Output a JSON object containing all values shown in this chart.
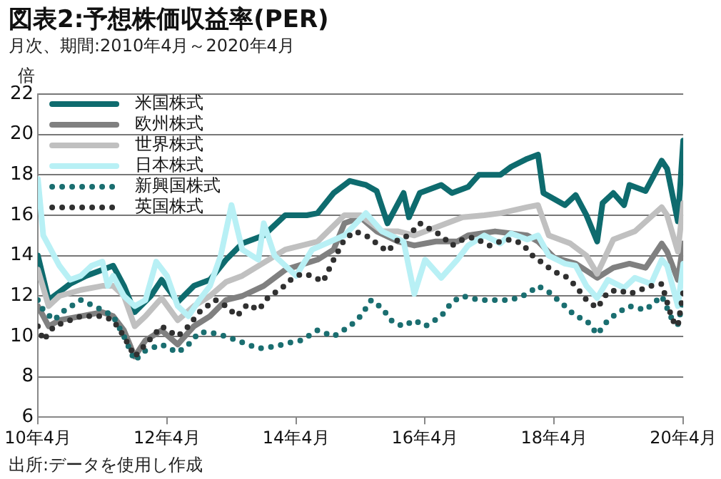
{
  "chart_data": {
    "type": "line",
    "title": "図表2:予想株価収益率(PER)",
    "subtitle": "月次、期間:2010年4月～2020年4月",
    "ylabel": "倍",
    "xlim": [
      "2010-04",
      "2020-04"
    ],
    "xticks": [
      {
        "value": "2010-04",
        "label": "10年4月"
      },
      {
        "value": "2012-04",
        "label": "12年4月"
      },
      {
        "value": "2014-04",
        "label": "14年4月"
      },
      {
        "value": "2016-04",
        "label": "16年4月"
      },
      {
        "value": "2018-04",
        "label": "18年4月"
      },
      {
        "value": "2020-04",
        "label": "20年4月"
      }
    ],
    "ylim": [
      6,
      22
    ],
    "yticks": [
      6,
      8,
      10,
      12,
      14,
      16,
      18,
      20,
      22
    ],
    "grid": "y",
    "legend": "top left",
    "annotations": [
      "出所:データを使用し作成"
    ],
    "series": [
      {
        "name": "米国株式",
        "color": "#0e6b6e",
        "line_style": "solid",
        "x": [
          "2010-04",
          "2010-06",
          "2010-08",
          "2010-10",
          "2011-01",
          "2011-04",
          "2011-06",
          "2011-08",
          "2011-10",
          "2012-01",
          "2012-03",
          "2012-06",
          "2012-09",
          "2012-12",
          "2013-03",
          "2013-06",
          "2013-10",
          "2014-02",
          "2014-06",
          "2014-08",
          "2014-11",
          "2015-02",
          "2015-05",
          "2015-07",
          "2015-09",
          "2015-12",
          "2016-01",
          "2016-03",
          "2016-07",
          "2016-09",
          "2016-12",
          "2017-02",
          "2017-06",
          "2017-08",
          "2017-11",
          "2018-01",
          "2018-02",
          "2018-06",
          "2018-08",
          "2018-10",
          "2018-12",
          "2019-01",
          "2019-03",
          "2019-05",
          "2019-06",
          "2019-09",
          "2019-12",
          "2020-01",
          "2020-03",
          "2020-04"
        ],
        "values": [
          14.0,
          11.8,
          12.2,
          12.6,
          13.0,
          13.3,
          13.5,
          12.5,
          11.2,
          12.0,
          12.8,
          11.7,
          12.5,
          12.8,
          13.8,
          14.6,
          15.0,
          16.0,
          16.0,
          16.1,
          17.1,
          17.7,
          17.5,
          17.2,
          15.6,
          17.1,
          15.9,
          17.1,
          17.5,
          17.1,
          17.4,
          18.0,
          18.0,
          18.4,
          18.8,
          19.0,
          17.1,
          16.5,
          17.0,
          16.0,
          14.7,
          16.6,
          17.1,
          16.5,
          17.5,
          17.2,
          18.7,
          18.3,
          15.7,
          19.7
        ]
      },
      {
        "name": "欧州株式",
        "color": "#808080",
        "line_style": "solid",
        "x": [
          "2010-04",
          "2010-06",
          "2010-08",
          "2010-12",
          "2011-04",
          "2011-06",
          "2011-08",
          "2011-10",
          "2011-12",
          "2012-03",
          "2012-06",
          "2012-09",
          "2012-12",
          "2013-03",
          "2013-06",
          "2013-10",
          "2014-02",
          "2014-08",
          "2014-11",
          "2015-01",
          "2015-04",
          "2015-07",
          "2015-11",
          "2016-02",
          "2016-06",
          "2016-10",
          "2016-12",
          "2017-05",
          "2017-11",
          "2018-01",
          "2018-04",
          "2018-08",
          "2018-12",
          "2019-03",
          "2019-06",
          "2019-09",
          "2019-12",
          "2020-01",
          "2020-03",
          "2020-04"
        ],
        "values": [
          11.5,
          10.5,
          10.8,
          11.0,
          11.2,
          11.0,
          10.3,
          9.0,
          9.8,
          10.3,
          9.6,
          10.5,
          11.0,
          11.8,
          12.0,
          12.5,
          13.3,
          13.8,
          14.3,
          15.6,
          15.9,
          15.2,
          14.7,
          14.5,
          14.7,
          14.7,
          15.0,
          15.2,
          15.0,
          14.7,
          13.9,
          13.6,
          12.9,
          13.4,
          13.6,
          13.4,
          14.6,
          14.2,
          12.8,
          14.6
        ]
      },
      {
        "name": "世界株式",
        "color": "#c0c0c0",
        "line_style": "solid",
        "x": [
          "2010-04",
          "2010-06",
          "2010-08",
          "2010-12",
          "2011-04",
          "2011-06",
          "2011-08",
          "2011-10",
          "2011-12",
          "2012-03",
          "2012-06",
          "2012-09",
          "2012-12",
          "2013-03",
          "2013-06",
          "2014-02",
          "2014-08",
          "2015-01",
          "2015-04",
          "2015-08",
          "2015-11",
          "2016-02",
          "2016-06",
          "2016-11",
          "2017-03",
          "2017-06",
          "2017-11",
          "2018-01",
          "2018-03",
          "2018-07",
          "2018-10",
          "2018-12",
          "2019-03",
          "2019-07",
          "2019-12",
          "2020-01",
          "2020-03",
          "2020-04"
        ],
        "values": [
          13.3,
          11.5,
          12.0,
          12.3,
          12.5,
          12.5,
          12.0,
          10.5,
          11.0,
          11.9,
          10.8,
          11.5,
          12.0,
          12.7,
          13.0,
          14.3,
          14.7,
          16.0,
          16.0,
          15.2,
          15.2,
          15.0,
          15.4,
          15.9,
          16.0,
          16.1,
          16.4,
          16.5,
          15.0,
          14.6,
          14.0,
          13.1,
          14.8,
          15.2,
          16.4,
          16.0,
          14.2,
          16.6
        ]
      },
      {
        "name": "日本株式",
        "color": "#b8f0f5",
        "line_style": "solid",
        "x": [
          "2010-04",
          "2010-05",
          "2010-06",
          "2010-08",
          "2010-10",
          "2010-12",
          "2011-02",
          "2011-04",
          "2011-05",
          "2011-06",
          "2011-08",
          "2011-10",
          "2011-12",
          "2012-02",
          "2012-04",
          "2012-06",
          "2012-08",
          "2012-10",
          "2012-12",
          "2013-02",
          "2013-04",
          "2013-06",
          "2013-09",
          "2013-10",
          "2013-12",
          "2014-04",
          "2014-07",
          "2015-01",
          "2015-05",
          "2015-08",
          "2015-12",
          "2016-02",
          "2016-04",
          "2016-07",
          "2016-10",
          "2016-12",
          "2017-03",
          "2017-06",
          "2017-08",
          "2017-11",
          "2018-01",
          "2018-03",
          "2018-06",
          "2018-08",
          "2018-10",
          "2018-12",
          "2019-02",
          "2019-05",
          "2019-07",
          "2019-10",
          "2019-12",
          "2020-01",
          "2020-03",
          "2020-04"
        ],
        "values": [
          17.8,
          15.0,
          14.5,
          13.5,
          12.8,
          13.0,
          13.5,
          13.7,
          12.5,
          13.0,
          12.0,
          11.5,
          11.8,
          13.7,
          13.0,
          11.5,
          11.0,
          11.8,
          12.5,
          14.0,
          16.5,
          14.3,
          13.8,
          15.6,
          14.0,
          13.0,
          14.3,
          15.0,
          16.1,
          15.2,
          14.7,
          12.1,
          13.8,
          12.9,
          13.8,
          14.5,
          15.0,
          14.6,
          15.1,
          14.8,
          15.0,
          14.0,
          13.6,
          13.5,
          12.5,
          11.9,
          12.8,
          12.4,
          12.9,
          12.6,
          13.8,
          13.5,
          11.5,
          13.6
        ]
      },
      {
        "name": "新興国株式",
        "color": "#1a6e70",
        "line_style": "dotted",
        "x": [
          "2010-04",
          "2010-05",
          "2010-07",
          "2010-09",
          "2010-12",
          "2011-04",
          "2011-06",
          "2011-08",
          "2011-10",
          "2011-12",
          "2012-03",
          "2012-06",
          "2012-08",
          "2012-10",
          "2012-12",
          "2013-03",
          "2013-06",
          "2013-09",
          "2013-12",
          "2014-03",
          "2014-05",
          "2014-08",
          "2014-11",
          "2015-02",
          "2015-04",
          "2015-06",
          "2015-08",
          "2015-10",
          "2015-12",
          "2016-02",
          "2016-04",
          "2016-07",
          "2016-09",
          "2016-11",
          "2017-02",
          "2017-05",
          "2017-08",
          "2017-11",
          "2018-01",
          "2018-03",
          "2018-06",
          "2018-08",
          "2018-10",
          "2018-12",
          "2019-02",
          "2019-04",
          "2019-06",
          "2019-09",
          "2019-12",
          "2020-02",
          "2020-03",
          "2020-04"
        ],
        "values": [
          11.8,
          11.3,
          10.8,
          11.3,
          11.8,
          11.3,
          11.0,
          10.0,
          8.8,
          9.3,
          9.6,
          9.2,
          9.6,
          10.2,
          10.2,
          10.0,
          9.7,
          9.4,
          9.5,
          9.7,
          9.8,
          10.3,
          10.0,
          10.5,
          11.0,
          11.8,
          11.4,
          10.7,
          10.5,
          10.8,
          10.5,
          11.0,
          11.7,
          12.0,
          11.8,
          11.8,
          11.8,
          12.1,
          12.5,
          12.2,
          11.5,
          11.0,
          10.8,
          10.1,
          10.8,
          11.2,
          11.5,
          11.3,
          12.0,
          10.8,
          10.6,
          11.8
        ]
      },
      {
        "name": "英国株式",
        "color": "#303030",
        "line_style": "dotted",
        "x": [
          "2010-04",
          "2010-05",
          "2010-07",
          "2010-09",
          "2010-12",
          "2011-04",
          "2011-06",
          "2011-08",
          "2011-10",
          "2011-12",
          "2012-03",
          "2012-06",
          "2012-08",
          "2012-10",
          "2013-01",
          "2013-03",
          "2013-05",
          "2013-07",
          "2013-09",
          "2013-11",
          "2014-01",
          "2014-03",
          "2014-05",
          "2014-07",
          "2014-09",
          "2014-11",
          "2015-01",
          "2015-03",
          "2015-05",
          "2015-07",
          "2015-09",
          "2015-11",
          "2016-01",
          "2016-03",
          "2016-05",
          "2016-07",
          "2016-09",
          "2016-11",
          "2017-01",
          "2017-04",
          "2017-06",
          "2017-08",
          "2017-10",
          "2017-12",
          "2018-02",
          "2018-04",
          "2018-06",
          "2018-08",
          "2018-10",
          "2018-12",
          "2019-02",
          "2019-04",
          "2019-06",
          "2019-08",
          "2019-10",
          "2019-12",
          "2020-02",
          "2020-03",
          "2020-04"
        ],
        "values": [
          10.5,
          9.8,
          10.5,
          10.7,
          11.0,
          11.0,
          10.8,
          10.0,
          9.0,
          9.6,
          10.5,
          10.0,
          10.5,
          11.2,
          11.8,
          11.5,
          11.0,
          11.6,
          11.3,
          12.0,
          12.3,
          12.8,
          13.1,
          13.0,
          12.7,
          13.8,
          14.8,
          15.2,
          15.0,
          14.6,
          14.2,
          14.8,
          15.0,
          15.6,
          15.3,
          15.0,
          14.5,
          14.8,
          14.9,
          14.5,
          14.7,
          14.8,
          14.6,
          14.0,
          13.6,
          13.2,
          13.0,
          12.5,
          11.8,
          11.4,
          12.2,
          12.3,
          12.1,
          12.3,
          12.5,
          12.6,
          10.8,
          10.5,
          12.2
        ]
      }
    ]
  }
}
